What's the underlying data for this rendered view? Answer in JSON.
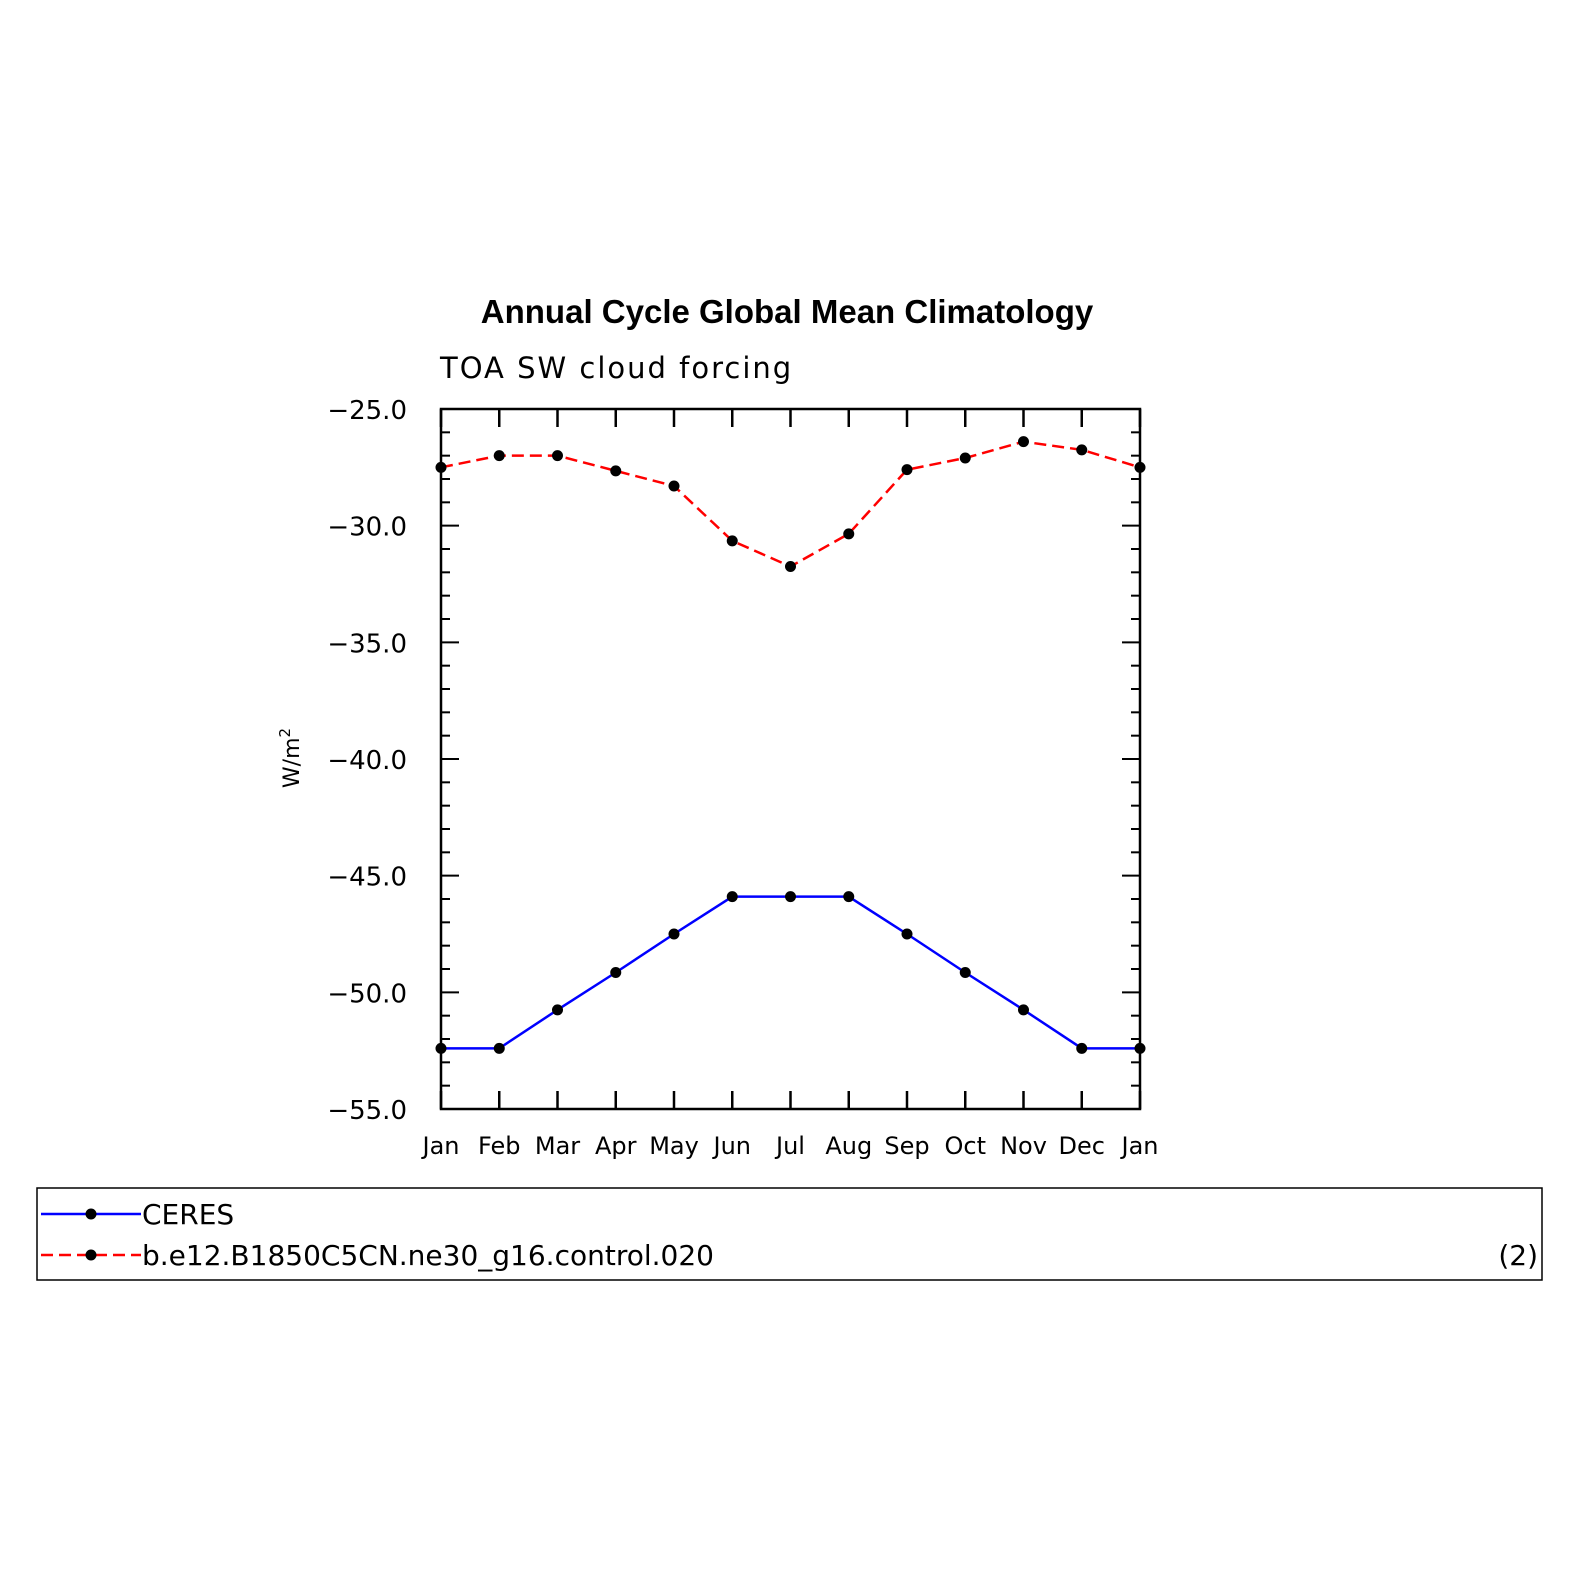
{
  "chart_data": {
    "type": "line",
    "title": "Annual Cycle Global Mean Climatology",
    "subtitle": "TOA SW cloud forcing",
    "ylabel": "W/m",
    "ylabel_sup": "2",
    "ylim": [
      -55.0,
      -25.0
    ],
    "yticks": [
      "-25.0",
      "-30.0",
      "-35.0",
      "-40.0",
      "-45.0",
      "-50.0",
      "-55.0"
    ],
    "ytick_values": [
      -25,
      -30,
      -35,
      -40,
      -45,
      -50,
      -55
    ],
    "categories": [
      "Jan",
      "Feb",
      "Mar",
      "Apr",
      "May",
      "Jun",
      "Jul",
      "Aug",
      "Sep",
      "Oct",
      "Nov",
      "Dec",
      "Jan"
    ],
    "series": [
      {
        "name": "CERES",
        "color": "#0000ff",
        "dash": "solid",
        "values": [
          -52.4,
          -52.4,
          -50.75,
          -49.15,
          -47.5,
          -45.9,
          -45.9,
          -45.9,
          -47.5,
          -49.15,
          -50.75,
          -52.4,
          -52.4
        ]
      },
      {
        "name": "b.e12.B1850C5CN.ne30_g16.control.020",
        "color": "#ff0000",
        "dash": "dashed",
        "values": [
          -27.5,
          -27.0,
          -27.0,
          -27.65,
          -28.3,
          -30.65,
          -31.75,
          -30.35,
          -27.6,
          -27.1,
          -26.4,
          -26.75,
          -27.5
        ]
      }
    ],
    "grid": false,
    "legend_note": "(2)"
  }
}
